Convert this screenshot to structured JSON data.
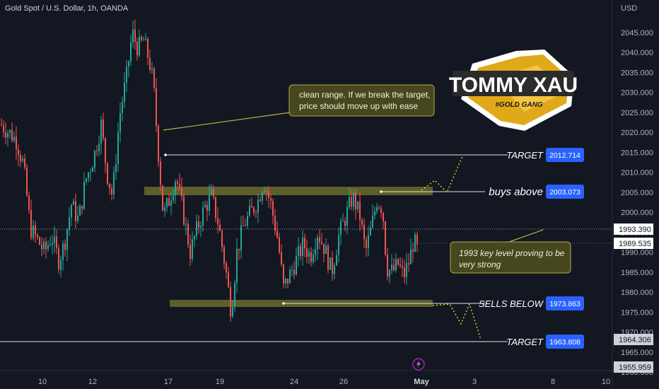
{
  "header": {
    "symbol": "Gold Spot / U.S. Dollar, 1h, OANDA",
    "currency": "USD"
  },
  "logo": {
    "title": "TOMMY XAU",
    "subtitle": "#GOLD GANG"
  },
  "colors": {
    "up": "#26a69a",
    "down": "#ef5350",
    "zone": "#6b6b2a",
    "annotation_bg": "#4a4a1e",
    "annotation_border": "#b8b046",
    "badge_blue": "#2962ff",
    "dotted_projection": "#e8e81a"
  },
  "annotations": [
    {
      "text1": "clean range. If we break the target,",
      "text2": "price should move up with ease"
    },
    {
      "text1": "1993 key level proving to be",
      "text2": "very strong"
    }
  ],
  "levels": [
    {
      "name": "TARGET",
      "price": "2012.714",
      "style": "italic"
    },
    {
      "name": "buys above",
      "price": "2003.073",
      "style": "italic-large"
    },
    {
      "name": "SELLS BELOW",
      "price": "1973.863",
      "style": "italic"
    },
    {
      "name": "TARGET",
      "price": "1963.808",
      "style": "italic"
    }
  ],
  "price_markers": {
    "current": "1993.390",
    "last": "1989.535",
    "low1": "1964.306",
    "low2": "1955.959"
  },
  "chart_data": {
    "type": "candlestick",
    "title": "Gold Spot / U.S. Dollar, 1h, OANDA",
    "ylabel": "USD",
    "ylim": [
      1953,
      2050
    ],
    "y_ticks": [
      "2045.000",
      "2040.000",
      "2035.000",
      "2030.000",
      "2025.000",
      "2020.000",
      "2015.000",
      "2010.000",
      "2005.000",
      "2000.000",
      "1995.000",
      "1990.000",
      "1985.000",
      "1980.000",
      "1975.000",
      "1970.000",
      "1965.000",
      "1960.000"
    ],
    "x_ticks": [
      "10",
      "12",
      "17",
      "19",
      "24",
      "26",
      "May",
      "3",
      "8",
      "10"
    ],
    "waypoints": [
      [
        0,
        2022
      ],
      [
        12,
        2020
      ],
      [
        22,
        2018
      ],
      [
        32,
        2012
      ],
      [
        42,
        1996
      ],
      [
        52,
        1993
      ],
      [
        62,
        1990
      ],
      [
        72,
        1994
      ],
      [
        82,
        1988
      ],
      [
        90,
        1992
      ],
      [
        100,
        2002
      ],
      [
        110,
        1998
      ],
      [
        120,
        2008
      ],
      [
        132,
        2014
      ],
      [
        142,
        2022
      ],
      [
        150,
        2010
      ],
      [
        158,
        2004
      ],
      [
        168,
        2024
      ],
      [
        178,
        2034
      ],
      [
        186,
        2045
      ],
      [
        194,
        2041
      ],
      [
        202,
        2043
      ],
      [
        210,
        2038
      ],
      [
        216,
        2032
      ],
      [
        222,
        2017
      ],
      [
        230,
        1999
      ],
      [
        238,
        2003
      ],
      [
        248,
        2009
      ],
      [
        258,
        2000
      ],
      [
        268,
        1990
      ],
      [
        278,
        1996
      ],
      [
        288,
        2001
      ],
      [
        298,
        2004
      ],
      [
        308,
        1997
      ],
      [
        318,
        1986
      ],
      [
        326,
        1975
      ],
      [
        334,
        1990
      ],
      [
        344,
        1997
      ],
      [
        354,
        2000
      ],
      [
        364,
        2003
      ],
      [
        372,
        2008
      ],
      [
        382,
        2002
      ],
      [
        392,
        1993
      ],
      [
        400,
        1981
      ],
      [
        408,
        1984
      ],
      [
        418,
        1988
      ],
      [
        428,
        1992
      ],
      [
        438,
        1989
      ],
      [
        448,
        1995
      ],
      [
        458,
        1991
      ],
      [
        468,
        1985
      ],
      [
        478,
        1994
      ],
      [
        488,
        1999
      ],
      [
        498,
        2004
      ],
      [
        508,
        1999
      ],
      [
        516,
        1990
      ],
      [
        524,
        1996
      ],
      [
        532,
        2003
      ],
      [
        540,
        2001
      ],
      [
        546,
        1986
      ],
      [
        554,
        1985
      ],
      [
        562,
        1987
      ],
      [
        570,
        1984
      ],
      [
        578,
        1988
      ],
      [
        584,
        1993
      ],
      [
        590,
        1990
      ]
    ]
  }
}
